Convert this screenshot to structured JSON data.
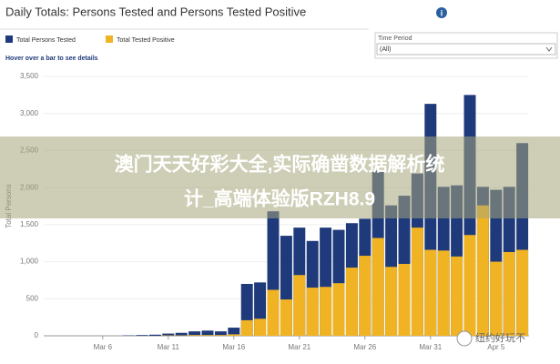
{
  "header": {
    "title": "Daily Totals: Persons Tested and Persons Tested Positive"
  },
  "hint": "Hover over a bar to see details",
  "filter": {
    "label": "Time Period",
    "value": "(All)"
  },
  "banner": {
    "line1": "澳门天天好彩大全,实际确凿数据解析统",
    "line2": "计_高端体验版RZH8.9"
  },
  "watermark": "纽约好玩不",
  "chart_data": {
    "type": "bar",
    "overlap": true,
    "ylabel": "Total Persons",
    "ylim": [
      0,
      3500
    ],
    "yticks": [
      0,
      500,
      {
        "value": 1000,
        "label": "1,000"
      },
      {
        "value": 1500,
        "label": "1,500"
      },
      {
        "value": 2000,
        "label": "2,000"
      },
      {
        "value": 2500,
        "label": "2,500"
      },
      {
        "value": 3000,
        "label": "3,000"
      },
      {
        "value": 3500,
        "label": "3,500"
      }
    ],
    "categories": [
      null,
      null,
      null,
      null,
      "Mar 6",
      null,
      null,
      null,
      null,
      "Mar 11",
      null,
      null,
      null,
      null,
      "Mar 16",
      null,
      null,
      null,
      null,
      "Mar 21",
      null,
      null,
      null,
      null,
      "Mar 26",
      null,
      null,
      null,
      null,
      "Mar 31",
      null,
      null,
      null,
      null,
      "Apr 5",
      null,
      null
    ],
    "series": [
      {
        "name": "Total Persons Tested",
        "color": "#1f3a7a",
        "values": [
          0,
          0,
          0,
          0,
          0,
          0,
          5,
          10,
          15,
          30,
          40,
          60,
          70,
          60,
          110,
          700,
          720,
          1680,
          1350,
          1460,
          1280,
          1460,
          1430,
          1520,
          1580,
          2230,
          1760,
          1890,
          2190,
          3130,
          2010,
          2030,
          3250,
          2010,
          1970,
          2010,
          2600
        ]
      },
      {
        "name": "Total Tested Positive",
        "color": "#f0b323",
        "values": [
          0,
          0,
          0,
          0,
          0,
          0,
          0,
          0,
          0,
          5,
          5,
          10,
          10,
          10,
          20,
          210,
          230,
          620,
          490,
          820,
          650,
          660,
          710,
          920,
          1080,
          1320,
          930,
          970,
          1460,
          1160,
          1150,
          1070,
          1360,
          1760,
          1000,
          1130,
          1160
        ]
      }
    ]
  }
}
